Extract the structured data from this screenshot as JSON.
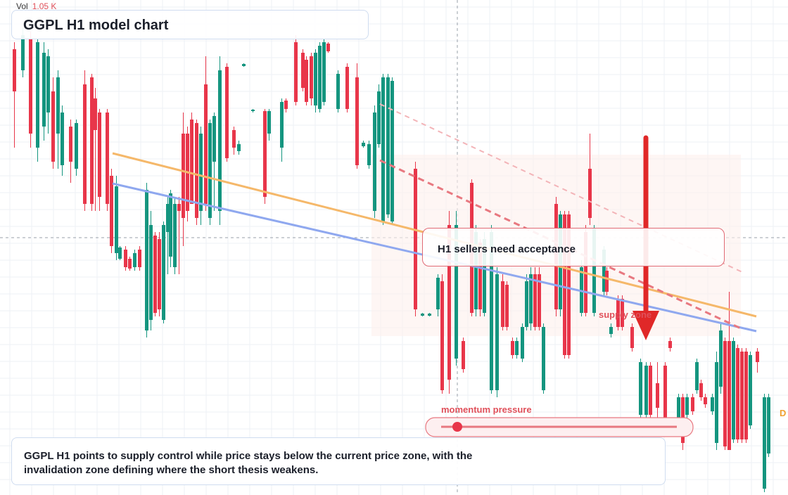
{
  "header": {
    "volume_label": "Vol",
    "volume_value": "1.05 K",
    "title": "GGPL H1 model chart"
  },
  "annotations": {
    "callout": "H1 sellers need acceptance",
    "zone_label": "supply zone",
    "momentum_label": "momentum pressure",
    "thesis": "GGPL H1 points to supply control while price stays below the current price zone, with the invalidation zone defining where the short thesis weakens.",
    "edge_tag": "D"
  },
  "colors": {
    "up": "#14957f",
    "down": "#e8364a",
    "trend_orange": "#f5b86a",
    "trend_blue": "#8fa8ef",
    "dashed_red": "#e87880",
    "arrow": "#e02828"
  },
  "chart_data": {
    "type": "candlestick",
    "title": "GGPL H1 model chart",
    "candles": [
      [
        18,
        125,
        155,
        130,
        175
      ],
      [
        20,
        60,
        135,
        130,
        70
      ],
      [
        23,
        60,
        110,
        105,
        70
      ],
      [
        25,
        45,
        135,
        70,
        108
      ],
      [
        27,
        40,
        65,
        60,
        45
      ],
      [
        30,
        60,
        100,
        90,
        70
      ],
      [
        32,
        55,
        125,
        65,
        120
      ],
      [
        34,
        60,
        115,
        110,
        65
      ],
      [
        36,
        40,
        160,
        80,
        155
      ],
      [
        39,
        55,
        120,
        115,
        60
      ],
      [
        41,
        40,
        95,
        60,
        90
      ],
      [
        44,
        40,
        170,
        75,
        165
      ],
      [
        46,
        50,
        215,
        60,
        205
      ],
      [
        48,
        80,
        220,
        90,
        210
      ],
      [
        51,
        60,
        210,
        70,
        205
      ],
      [
        53,
        60,
        140,
        70,
        130
      ],
      [
        56,
        85,
        130,
        120,
        90
      ],
      [
        58,
        70,
        120,
        115,
        75
      ],
      [
        60,
        70,
        130,
        125,
        75
      ],
      [
        62,
        85,
        130,
        125,
        90
      ],
      [
        65,
        105,
        165,
        150,
        110
      ],
      [
        67,
        110,
        160,
        155,
        115
      ],
      [
        69,
        100,
        200,
        110,
        195
      ],
      [
        71,
        115,
        210,
        140,
        200
      ],
      [
        73,
        110,
        200,
        120,
        190
      ],
      [
        76,
        125,
        200,
        135,
        195
      ],
      [
        78,
        120,
        200,
        125,
        195
      ],
      [
        81,
        125,
        215,
        140,
        210
      ],
      [
        83,
        140,
        230,
        150,
        225
      ],
      [
        85,
        160,
        230,
        170,
        220
      ],
      [
        88,
        180,
        240,
        190,
        235
      ],
      [
        90,
        170,
        240,
        220,
        180
      ],
      [
        92,
        160,
        240,
        200,
        170
      ],
      [
        95,
        150,
        210,
        170,
        160
      ],
      [
        97,
        120,
        220,
        180,
        130
      ],
      [
        99,
        125,
        190,
        135,
        185
      ]
    ],
    "price_lines": [
      "orange trendline",
      "blue trendline",
      "dashed red supply line"
    ]
  }
}
